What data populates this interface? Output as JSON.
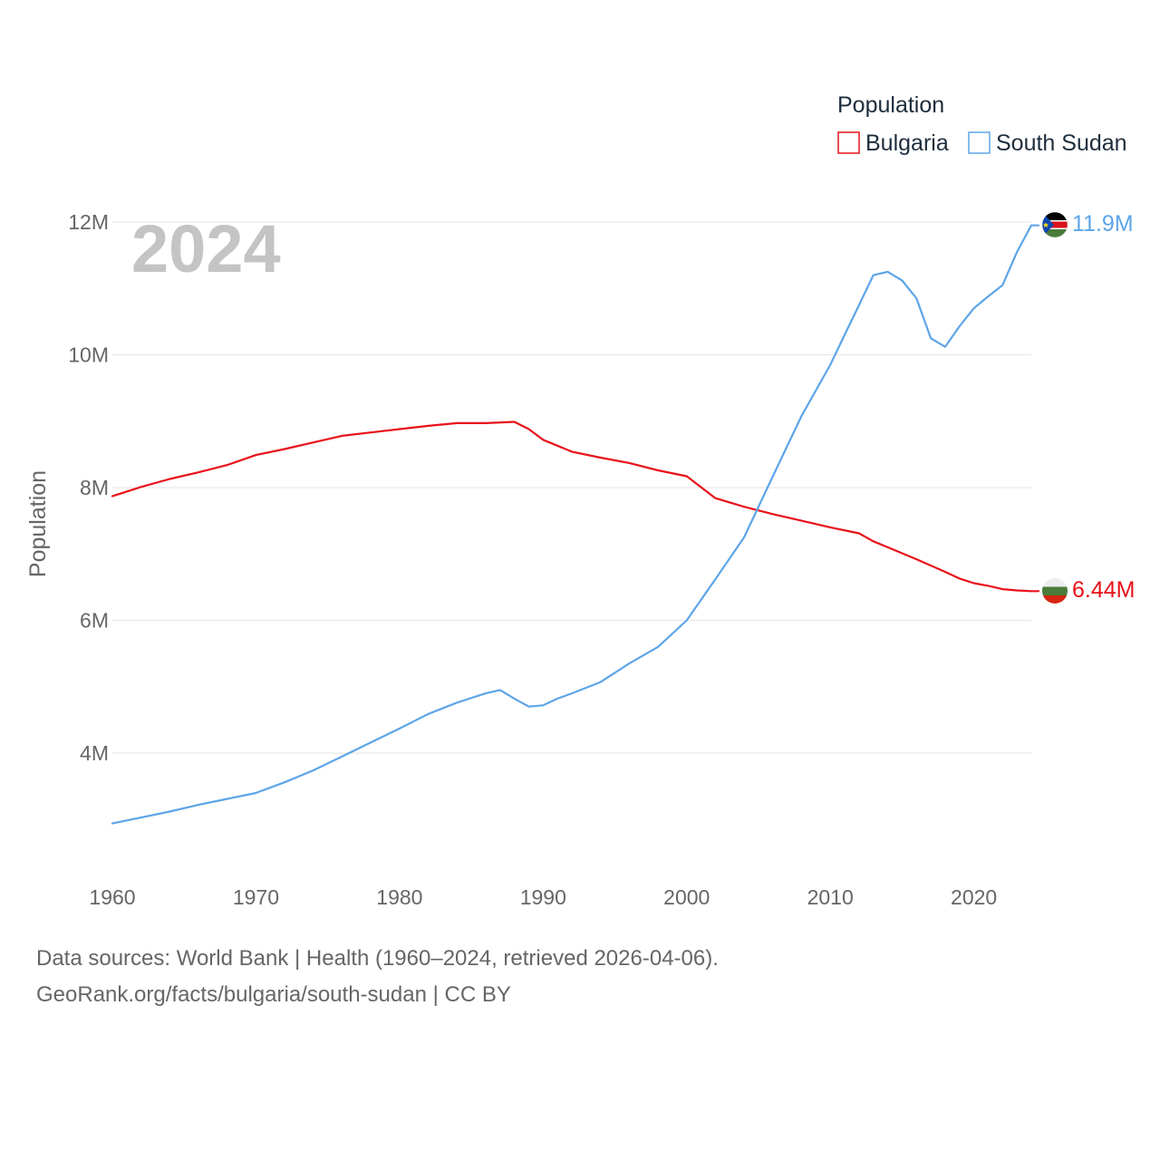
{
  "chart_data": {
    "type": "line",
    "year_label": "2024",
    "ylabel": "Population",
    "xlabel": "",
    "xlim": [
      1960,
      2024
    ],
    "ylim": [
      2.5,
      12.6
    ],
    "y_ticks": [
      4,
      6,
      8,
      10,
      12
    ],
    "y_tick_labels": [
      "4M",
      "6M",
      "8M",
      "10M",
      "12M"
    ],
    "x_ticks": [
      1960,
      1970,
      1980,
      1990,
      2000,
      2010,
      2020
    ],
    "x_tick_labels": [
      "1960",
      "1970",
      "1980",
      "1990",
      "2000",
      "2010",
      "2020"
    ],
    "grid": true,
    "legend": {
      "title": "Population",
      "position": "top-right",
      "entries": [
        "Bulgaria",
        "South Sudan"
      ]
    },
    "series": [
      {
        "name": "Bulgaria",
        "color": "#e8111a",
        "end_label": "6.44M",
        "x": [
          1960,
          1962,
          1964,
          1966,
          1968,
          1970,
          1972,
          1974,
          1976,
          1978,
          1980,
          1982,
          1984,
          1986,
          1988,
          1989,
          1990,
          1992,
          1994,
          1996,
          1998,
          2000,
          2002,
          2004,
          2006,
          2008,
          2010,
          2012,
          2013,
          2014,
          2016,
          2018,
          2019,
          2020,
          2021,
          2022,
          2023,
          2024
        ],
        "values": [
          7.87,
          8.01,
          8.13,
          8.23,
          8.34,
          8.49,
          8.58,
          8.68,
          8.78,
          8.83,
          8.88,
          8.93,
          8.97,
          8.97,
          8.99,
          8.88,
          8.72,
          8.54,
          8.45,
          8.37,
          8.26,
          8.17,
          7.84,
          7.71,
          7.6,
          7.5,
          7.4,
          7.31,
          7.19,
          7.1,
          6.92,
          6.73,
          6.63,
          6.56,
          6.52,
          6.47,
          6.45,
          6.44
        ]
      },
      {
        "name": "South Sudan",
        "color": "#5da5e8",
        "end_label": "11.9M",
        "x": [
          1960,
          1962,
          1964,
          1966,
          1968,
          1970,
          1972,
          1974,
          1976,
          1978,
          1980,
          1982,
          1984,
          1986,
          1987,
          1988,
          1989,
          1990,
          1991,
          1992,
          1994,
          1996,
          1998,
          2000,
          2002,
          2004,
          2006,
          2008,
          2010,
          2011,
          2012,
          2013,
          2014,
          2015,
          2016,
          2017,
          2018,
          2019,
          2020,
          2021,
          2022,
          2023,
          2024
        ],
        "values": [
          2.94,
          3.03,
          3.12,
          3.22,
          3.31,
          3.4,
          3.56,
          3.74,
          3.95,
          4.16,
          4.37,
          4.59,
          4.76,
          4.9,
          4.95,
          4.82,
          4.7,
          4.72,
          4.82,
          4.9,
          5.07,
          5.35,
          5.6,
          6.0,
          6.62,
          7.25,
          8.17,
          9.08,
          9.85,
          10.3,
          10.75,
          11.2,
          11.25,
          11.12,
          10.85,
          10.25,
          10.12,
          10.43,
          10.7,
          10.88,
          11.05,
          11.55,
          11.95
        ]
      }
    ]
  },
  "footer": {
    "line1": "Data sources: World Bank | Health (1960–2024, retrieved 2026-04-06).",
    "line2": "GeoRank.org/facts/bulgaria/south-sudan | CC BY"
  }
}
